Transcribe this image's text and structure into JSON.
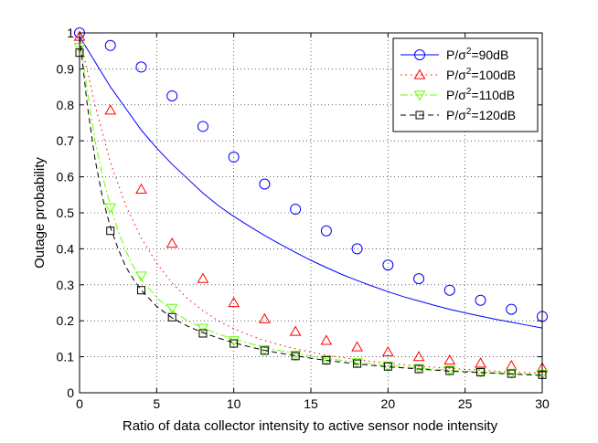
{
  "chart_data": {
    "type": "line",
    "title": "",
    "xlabel": "Ratio of data collector intensity to active sensor node intensity",
    "ylabel": "Outage probability",
    "xlim": [
      0,
      30
    ],
    "ylim": [
      0,
      1
    ],
    "xticks": [
      0,
      5,
      10,
      15,
      20,
      25,
      30
    ],
    "yticks": [
      0,
      0.1,
      0.2,
      0.3,
      0.4,
      0.5,
      0.6,
      0.7,
      0.8,
      0.9,
      1
    ],
    "grid": true,
    "legend_position": "top-right",
    "series": [
      {
        "name": "P/σ²=90dB",
        "label_base": "P/σ",
        "label_sup": "2",
        "label_tail": "=90dB",
        "color": "#0000ff",
        "line_style": "solid",
        "marker": "circle",
        "curve_x": [
          0,
          1,
          2,
          3,
          4,
          5,
          6,
          7,
          8,
          9,
          10,
          11,
          12,
          13,
          14,
          15,
          16,
          17,
          18,
          19,
          20,
          21,
          22,
          23,
          24,
          25,
          26,
          27,
          28,
          29,
          30
        ],
        "curve_y": [
          0.99,
          0.92,
          0.85,
          0.79,
          0.73,
          0.68,
          0.635,
          0.595,
          0.555,
          0.52,
          0.49,
          0.463,
          0.437,
          0.413,
          0.39,
          0.368,
          0.348,
          0.329,
          0.312,
          0.296,
          0.281,
          0.267,
          0.255,
          0.243,
          0.232,
          0.222,
          0.213,
          0.204,
          0.196,
          0.188,
          0.18
        ],
        "marker_x": [
          0,
          2,
          4,
          6,
          8,
          10,
          12,
          14,
          16,
          18,
          20,
          22,
          24,
          26,
          28,
          30
        ],
        "marker_y": [
          1.0,
          0.965,
          0.905,
          0.825,
          0.74,
          0.655,
          0.58,
          0.51,
          0.45,
          0.4,
          0.355,
          0.317,
          0.285,
          0.257,
          0.232,
          0.212
        ]
      },
      {
        "name": "P/σ²=100dB",
        "label_base": "P/σ",
        "label_sup": "2",
        "label_tail": "=100dB",
        "color": "#ff0000",
        "line_style": "dotted",
        "marker": "triangle-up",
        "curve_x": [
          0,
          1,
          2,
          3,
          4,
          5,
          6,
          7,
          8,
          9,
          10,
          11,
          12,
          13,
          14,
          15,
          16,
          17,
          18,
          19,
          20,
          21,
          22,
          23,
          24,
          25,
          26,
          27,
          28,
          29,
          30
        ],
        "curve_y": [
          0.99,
          0.8,
          0.64,
          0.52,
          0.43,
          0.36,
          0.305,
          0.262,
          0.228,
          0.2,
          0.178,
          0.16,
          0.145,
          0.133,
          0.122,
          0.113,
          0.105,
          0.098,
          0.092,
          0.087,
          0.082,
          0.078,
          0.074,
          0.071,
          0.068,
          0.065,
          0.063,
          0.06,
          0.058,
          0.056,
          0.055
        ],
        "marker_x": [
          0,
          2,
          4,
          6,
          8,
          10,
          12,
          14,
          16,
          18,
          20,
          22,
          24,
          26,
          28,
          30
        ],
        "marker_y": [
          0.99,
          0.785,
          0.565,
          0.415,
          0.317,
          0.25,
          0.205,
          0.17,
          0.145,
          0.127,
          0.113,
          0.1,
          0.09,
          0.082,
          0.075,
          0.069
        ]
      },
      {
        "name": "P/σ²=110dB",
        "label_base": "P/σ",
        "label_sup": "2",
        "label_tail": "=110dB",
        "color": "#66ff00",
        "line_style": "dash-dot",
        "marker": "triangle-down",
        "curve_x": [
          0,
          0.5,
          1,
          1.5,
          2,
          2.5,
          3,
          3.5,
          4,
          5,
          6,
          7,
          8,
          9,
          10,
          11,
          12,
          13,
          14,
          15,
          16,
          17,
          18,
          19,
          20,
          21,
          22,
          23,
          24,
          25,
          26,
          27,
          28,
          29,
          30
        ],
        "curve_y": [
          0.99,
          0.84,
          0.7,
          0.6,
          0.52,
          0.45,
          0.395,
          0.35,
          0.315,
          0.265,
          0.228,
          0.2,
          0.18,
          0.163,
          0.149,
          0.137,
          0.126,
          0.117,
          0.109,
          0.102,
          0.095,
          0.09,
          0.085,
          0.08,
          0.076,
          0.072,
          0.069,
          0.066,
          0.063,
          0.06,
          0.058,
          0.056,
          0.054,
          0.052,
          0.05
        ],
        "marker_x": [
          0,
          2,
          4,
          6,
          8,
          10,
          12,
          14,
          16,
          18,
          20,
          22,
          24,
          26,
          28,
          30
        ],
        "marker_y": [
          0.96,
          0.515,
          0.325,
          0.235,
          0.18,
          0.145,
          0.12,
          0.105,
          0.092,
          0.084,
          0.075,
          0.068,
          0.063,
          0.058,
          0.055,
          0.052
        ]
      },
      {
        "name": "P/σ²=120dB",
        "label_base": "P/σ",
        "label_sup": "2",
        "label_tail": "=120dB",
        "color": "#000000",
        "line_style": "dashed",
        "marker": "square",
        "curve_x": [
          0,
          0.5,
          1,
          1.5,
          2,
          2.5,
          3,
          3.5,
          4,
          5,
          6,
          7,
          8,
          9,
          10,
          11,
          12,
          13,
          14,
          15,
          16,
          17,
          18,
          19,
          20,
          21,
          22,
          23,
          24,
          25,
          26,
          27,
          28,
          29,
          30
        ],
        "curve_y": [
          0.99,
          0.8,
          0.65,
          0.54,
          0.46,
          0.4,
          0.35,
          0.315,
          0.285,
          0.24,
          0.208,
          0.185,
          0.167,
          0.152,
          0.139,
          0.128,
          0.118,
          0.11,
          0.103,
          0.096,
          0.09,
          0.085,
          0.08,
          0.076,
          0.072,
          0.069,
          0.066,
          0.063,
          0.06,
          0.058,
          0.056,
          0.054,
          0.052,
          0.05,
          0.048
        ],
        "marker_x": [
          0,
          2,
          4,
          6,
          8,
          10,
          12,
          14,
          16,
          18,
          20,
          22,
          24,
          26,
          28,
          30
        ],
        "marker_y": [
          0.945,
          0.45,
          0.285,
          0.21,
          0.165,
          0.137,
          0.117,
          0.102,
          0.09,
          0.081,
          0.073,
          0.066,
          0.061,
          0.057,
          0.053,
          0.05
        ]
      }
    ]
  }
}
